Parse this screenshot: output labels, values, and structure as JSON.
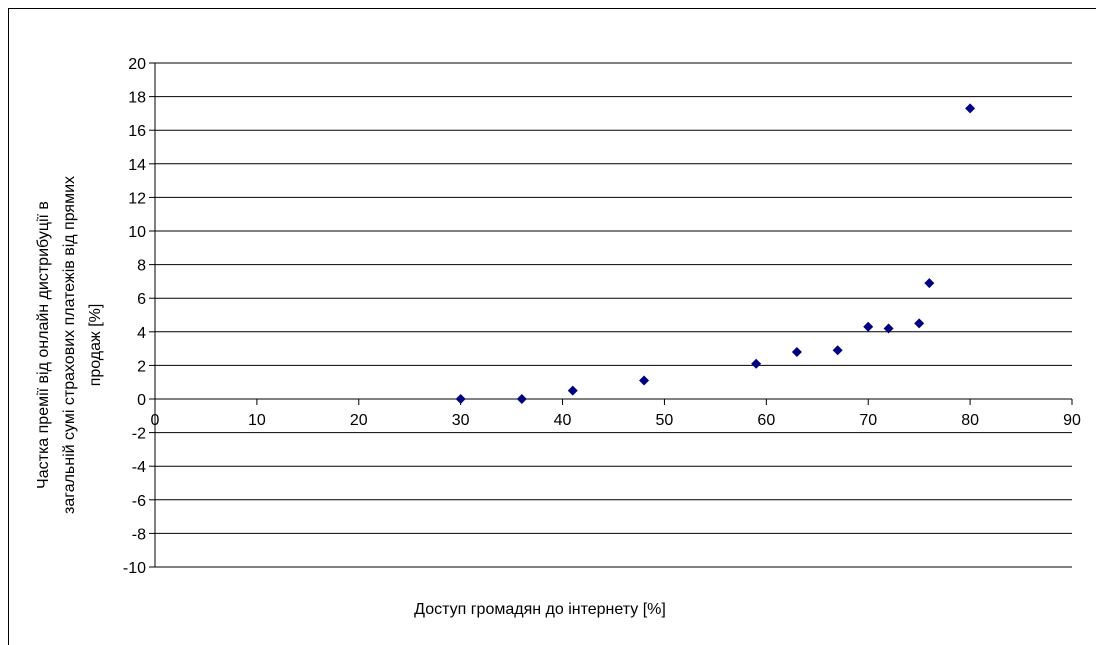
{
  "chart_data": {
    "type": "scatter",
    "xlabel": "Доступ громадян до інтернету [%]",
    "ylabel_lines": [
      "Частка премії  від  онлайн дистрибуції  в",
      "загальній сумі страхових платежів від прямих",
      "продаж  [%]"
    ],
    "xlim": [
      0,
      90
    ],
    "ylim": [
      -10,
      20
    ],
    "x_ticks": [
      0,
      10,
      20,
      30,
      40,
      50,
      60,
      70,
      80,
      90
    ],
    "y_ticks": [
      -10,
      -8,
      -6,
      -4,
      -2,
      0,
      2,
      4,
      6,
      8,
      10,
      12,
      14,
      16,
      18,
      20
    ],
    "grid": "horizontal",
    "marker": "diamond",
    "marker_color": "#000080",
    "series": [
      {
        "points": [
          {
            "x": 30,
            "y": 0
          },
          {
            "x": 36,
            "y": 0
          },
          {
            "x": 41,
            "y": 0.5
          },
          {
            "x": 48,
            "y": 1.1
          },
          {
            "x": 59,
            "y": 2.1
          },
          {
            "x": 63,
            "y": 2.8
          },
          {
            "x": 67,
            "y": 2.9
          },
          {
            "x": 70,
            "y": 4.3
          },
          {
            "x": 72,
            "y": 4.2
          },
          {
            "x": 75,
            "y": 4.5
          },
          {
            "x": 76,
            "y": 6.9
          },
          {
            "x": 80,
            "y": 17.3
          }
        ]
      }
    ]
  }
}
